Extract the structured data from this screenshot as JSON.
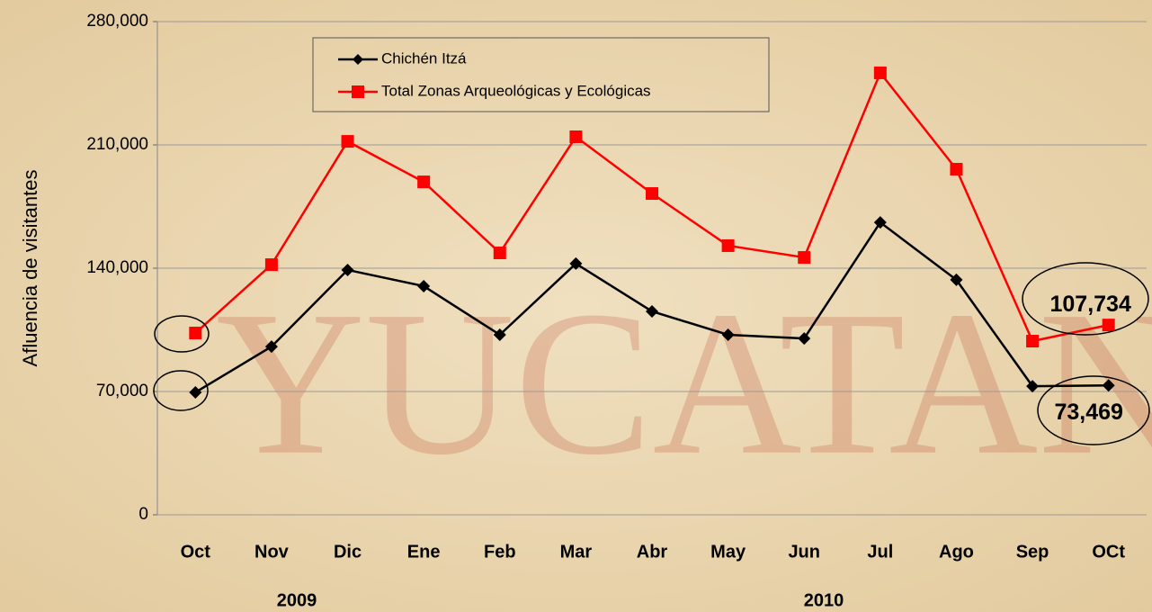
{
  "chart_data": {
    "type": "line",
    "y_label": "Afluencia de visitantes",
    "categories": [
      "Oct",
      "Nov",
      "Dic",
      "Ene",
      "Feb",
      "Mar",
      "Abr",
      "May",
      "Jun",
      "Jul",
      "Ago",
      "Sep",
      "OCt"
    ],
    "year_labels": [
      "2009",
      "2010"
    ],
    "series": [
      {
        "name": "Chichén Itzá",
        "color": "#000000",
        "marker": "diamond",
        "values": [
          69500,
          95500,
          139000,
          129800,
          102200,
          142600,
          115500,
          102200,
          100100,
          166000,
          133400,
          73000,
          73469
        ],
        "value_labels": [
          null,
          null,
          null,
          null,
          null,
          null,
          null,
          null,
          null,
          null,
          null,
          null,
          "73,469"
        ]
      },
      {
        "name": "Total Zonas Arqueológicas y Ecológicas",
        "color": "#ff0000",
        "marker": "square",
        "values": [
          103200,
          142000,
          212000,
          189000,
          148700,
          214600,
          182400,
          152800,
          146100,
          250900,
          196200,
          98600,
          107734
        ],
        "value_labels": [
          null,
          null,
          null,
          null,
          null,
          null,
          null,
          null,
          null,
          null,
          null,
          null,
          "107,734"
        ]
      }
    ],
    "ylim": [
      0,
      280000
    ],
    "yticks": [
      0,
      {
        "value": 70000,
        "label": "70,000"
      },
      {
        "value": 140000,
        "label": "140,000"
      },
      {
        "value": 210000,
        "label": "210,000"
      },
      {
        "value": 280000,
        "label": "280,000"
      }
    ],
    "grid": true,
    "legend": "upper left"
  }
}
